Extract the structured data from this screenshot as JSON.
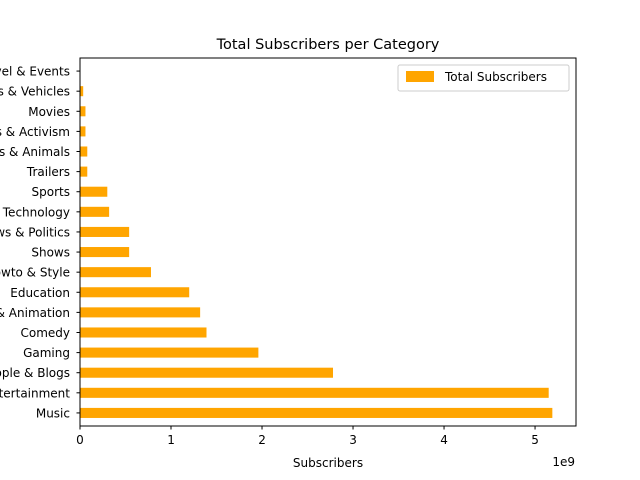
{
  "chart_data": {
    "type": "bar",
    "orientation": "horizontal",
    "title": "Total Subscribers per Category",
    "xlabel": "Subscribers",
    "ylabel": "",
    "x_scale_label": "1e9",
    "xlim": [
      0,
      5.45
    ],
    "x_ticks": [
      0,
      1,
      2,
      3,
      4,
      5
    ],
    "grid": false,
    "legend_position": "top-right",
    "bar_color": "#ffa500",
    "categories": [
      "Music",
      "Entertainment",
      "People & Blogs",
      "Gaming",
      "Comedy",
      "Film & Animation",
      "Education",
      "Howto & Style",
      "Shows",
      "News & Politics",
      "Science & Technology",
      "Sports",
      "Trailers",
      "Pets & Animals",
      "Nonprofits & Activism",
      "Movies",
      "Autos & Vehicles",
      "Travel & Events"
    ],
    "series": [
      {
        "name": "Total Subscribers",
        "values": [
          5.19,
          5.15,
          2.78,
          1.96,
          1.39,
          1.32,
          1.2,
          0.78,
          0.54,
          0.54,
          0.32,
          0.3,
          0.08,
          0.08,
          0.06,
          0.06,
          0.035,
          0.005
        ]
      }
    ]
  }
}
